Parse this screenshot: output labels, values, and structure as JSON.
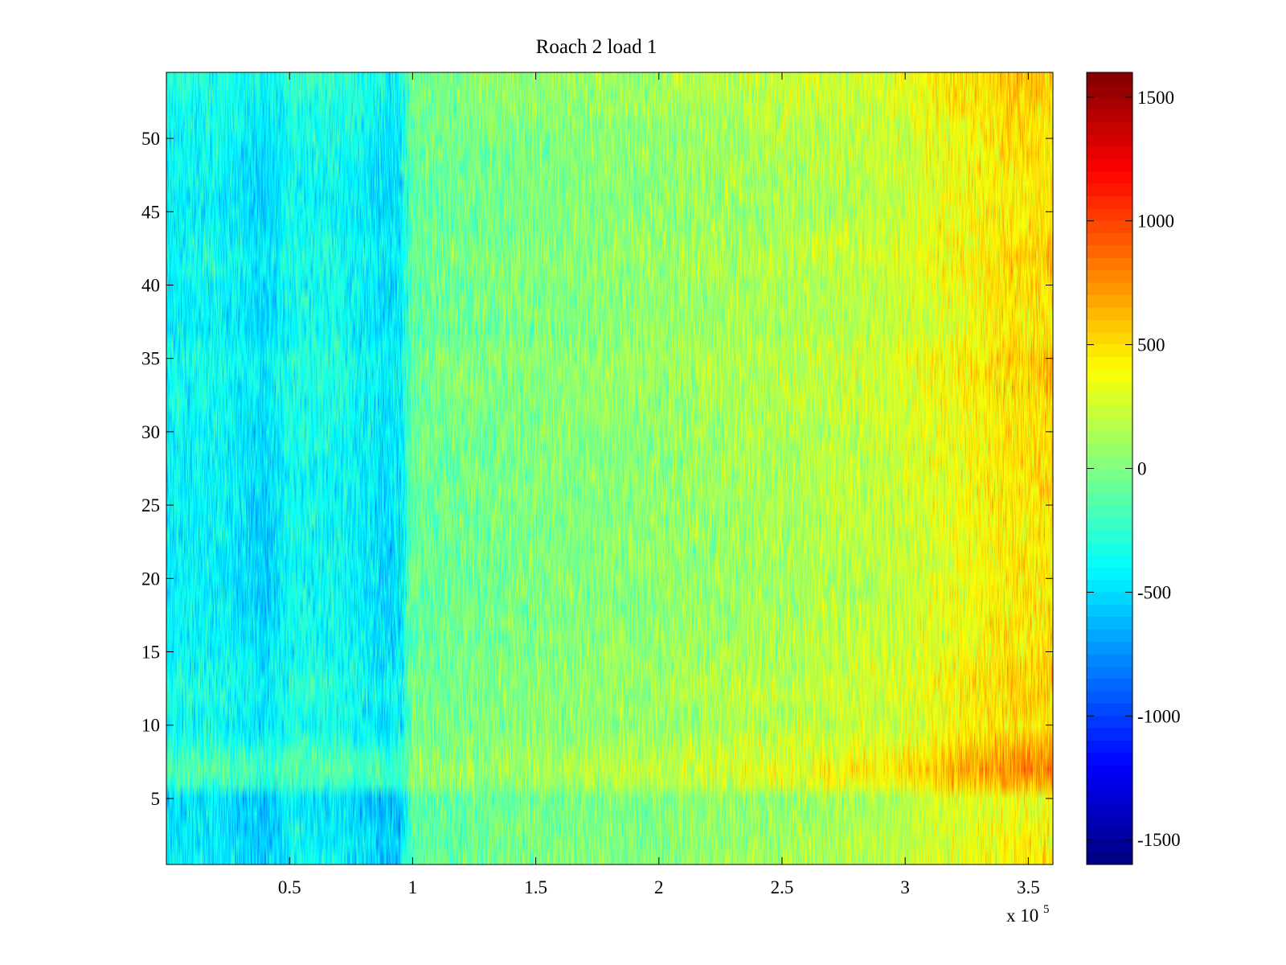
{
  "chart_data": {
    "type": "heatmap",
    "title": "Roach 2 load 1",
    "xlabel": "",
    "ylabel": "",
    "x_exponent_label": {
      "base": "x 10",
      "exponent": "5"
    },
    "xlim": [
      0,
      360000
    ],
    "ylim": [
      0.5,
      54.5
    ],
    "x_ticks": [
      50000,
      100000,
      150000,
      200000,
      250000,
      300000,
      350000
    ],
    "x_tick_labels": [
      "0.5",
      "1",
      "1.5",
      "2",
      "2.5",
      "3",
      "3.5"
    ],
    "y_ticks": [
      5,
      10,
      15,
      20,
      25,
      30,
      35,
      40,
      45,
      50
    ],
    "y_tick_labels": [
      "5",
      "10",
      "15",
      "20",
      "25",
      "30",
      "35",
      "40",
      "45",
      "50"
    ],
    "rows": 54,
    "colormap": "jet",
    "colorbar": {
      "range": [
        -1600,
        1600
      ],
      "ticks": [
        1500,
        1000,
        500,
        0,
        -500,
        -1000,
        -1500
      ],
      "tick_labels": [
        "1500",
        "1000",
        "500",
        "0",
        "-500",
        "-1000",
        "-1500"
      ]
    },
    "column_profile": {
      "x": [
        0,
        20000,
        40000,
        45000,
        50000,
        70000,
        90000,
        95000,
        100000,
        110000,
        150000,
        200000,
        250000,
        280000,
        300000,
        320000,
        340000,
        360000
      ],
      "mean": [
        -380,
        -360,
        -470,
        -430,
        -320,
        -330,
        -460,
        -430,
        -60,
        -40,
        20,
        80,
        170,
        220,
        280,
        390,
        480,
        520
      ]
    },
    "row_profile": {
      "y": [
        1,
        3,
        5,
        6,
        7,
        8,
        10,
        12,
        13,
        15,
        20,
        25,
        30,
        35,
        37,
        38,
        40,
        42,
        45,
        50,
        54
      ],
      "offset": [
        -80,
        -120,
        -150,
        160,
        260,
        180,
        -20,
        30,
        40,
        -30,
        -70,
        -50,
        -30,
        40,
        -60,
        -50,
        -40,
        20,
        -70,
        -20,
        80
      ]
    },
    "grid": false,
    "legend": "none"
  }
}
